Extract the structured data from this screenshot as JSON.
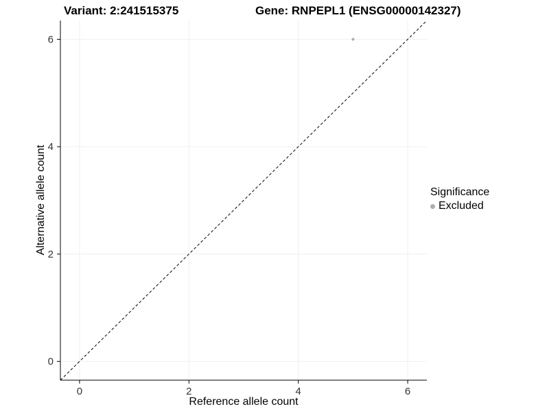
{
  "header": {
    "variant_title": "Variant: 2:241515375",
    "gene_title": "Gene: RNPEPL1 (ENSG00000142327)"
  },
  "legend": {
    "title": "Significance",
    "items": [
      {
        "label": "Excluded",
        "color": "#adadad"
      }
    ]
  },
  "chart_data": {
    "type": "scatter",
    "title": "",
    "xlabel": "Reference allele count",
    "ylabel": "Alternative allele count",
    "xlim": [
      -0.35,
      6.35
    ],
    "ylim": [
      -0.35,
      6.35
    ],
    "xticks": [
      0,
      2,
      4,
      6
    ],
    "yticks": [
      0,
      2,
      4,
      6
    ],
    "grid": true,
    "grid_color": "#efefef",
    "axis_color": "#000000",
    "legend_position": "right",
    "series": [
      {
        "name": "Excluded",
        "color": "#adadad",
        "point_radius": 2,
        "points": [
          {
            "x": 5,
            "y": 6
          }
        ]
      }
    ],
    "reference_line": {
      "type": "identity",
      "style": "dashed",
      "color": "#000000"
    }
  }
}
